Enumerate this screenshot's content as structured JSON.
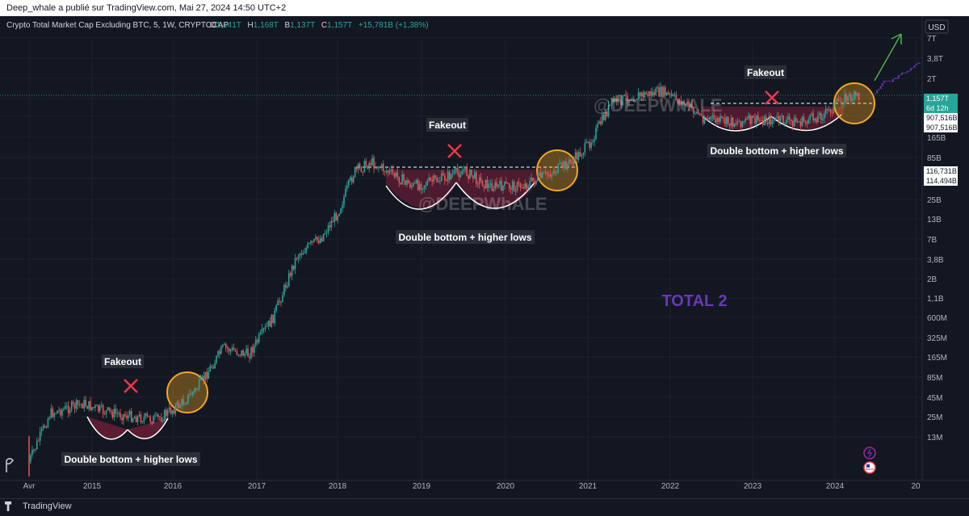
{
  "header": {
    "publish_text": "Deep_whale a publié sur TradingView.com, Mai 27, 2024 14:50 UTC+2"
  },
  "legend": {
    "symbol": "Crypto Total Market Cap Excluding BTC, 5, 1W, CRYPTOCAP",
    "o_label": "O",
    "o_value": "1,141T",
    "h_label": "H",
    "h_value": "1,168T",
    "b_label": "B",
    "b_value": "1,137T",
    "c_label": "C",
    "c_value": "1,157T",
    "change": "+15,781B (+1,38%)"
  },
  "currency": "USD",
  "price_tags": [
    {
      "text": "1,157T",
      "sub": "6d 12h",
      "y": 118,
      "color": "#26a69a"
    },
    {
      "text": "907,516B",
      "y": 142,
      "color": "#ffffff"
    },
    {
      "text": "907,516B",
      "y": 154,
      "color": "#ffffff"
    },
    {
      "text": "116,731B",
      "y": 208,
      "color": "#ffffff"
    },
    {
      "text": "114,494B",
      "y": 220,
      "color": "#ffffff"
    }
  ],
  "annotations": {
    "fakeout_1": "Fakeout",
    "fakeout_2": "Fakeout",
    "fakeout_3": "Fakeout",
    "pattern_1": "Double bottom + higher lows",
    "pattern_2": "Double bottom + higher lows",
    "pattern_3": "Double bottom + higher lows",
    "total": "TOTAL 2",
    "watermark_1": "@DEEPWhALE",
    "watermark_2": "@DEEPWhALE"
  },
  "footer": {
    "brand": "TradingView"
  },
  "colors": {
    "up": "#26a69a",
    "down": "#ef5350",
    "projection": "#673ab7",
    "circle": "#f5a623",
    "cross": "#f23645",
    "bowl": "#5c1d33",
    "total": "#673ab7",
    "arrow": "#4caf50"
  },
  "chart_data": {
    "type": "candlestick",
    "title": "Crypto Total Market Cap Excluding BTC, 5, 1W, CRYPTOCAP",
    "scale": "log",
    "currency": "USD",
    "x_ticks": [
      "Avr",
      "2015",
      "2016",
      "2017",
      "2018",
      "2019",
      "2020",
      "2021",
      "2022",
      "2023",
      "2024",
      "20"
    ],
    "y_ticks": [
      "7T",
      "3,8T",
      "2T",
      "1T",
      "325B",
      "165B",
      "85B",
      "45B",
      "25B",
      "13B",
      "7B",
      "3,8B",
      "2B",
      "1,1B",
      "600M",
      "325M",
      "165M",
      "85M",
      "45M",
      "25M",
      "13M"
    ],
    "last_close": "1,157T",
    "series": [
      {
        "name": "",
        "points": [
          [
            "Avr",
            12
          ],
          [
            "2014.5",
            55
          ],
          [
            "2014.9",
            75
          ],
          [
            "2015.1",
            60
          ],
          [
            "2015.5",
            50
          ],
          [
            "2015.8",
            45
          ],
          [
            "2016.1",
            75
          ],
          [
            "2016.3",
            125
          ],
          [
            "2016.6",
            430
          ],
          [
            "2016.9",
            350
          ],
          [
            "2017.2",
            1100
          ],
          [
            "2017.5",
            8000
          ],
          [
            "2017.8",
            14000
          ],
          [
            "2018.0",
            30000
          ],
          [
            "2018.2",
            110000
          ],
          [
            "2018.4",
            150000
          ],
          [
            "2018.6",
            110000
          ],
          [
            "2018.9",
            70000
          ],
          [
            "2019.2",
            85000
          ],
          [
            "2019.5",
            115000
          ],
          [
            "2019.8",
            70000
          ],
          [
            "2020.2",
            70000
          ],
          [
            "2020.5",
            100000
          ],
          [
            "2020.8",
            150000
          ],
          [
            "2021.0",
            250000
          ],
          [
            "2021.3",
            1000000
          ],
          [
            "2021.6",
            1200000
          ],
          [
            "2021.9",
            1350000
          ],
          [
            "2022.2",
            900000
          ],
          [
            "2022.4",
            600000
          ],
          [
            "2022.7",
            520000
          ],
          [
            "2023.0",
            550000
          ],
          [
            "2023.3",
            560000
          ],
          [
            "2023.6",
            520000
          ],
          [
            "2023.9",
            700000
          ],
          [
            "2024.1",
            1100000
          ],
          [
            "2024.3",
            1157000
          ]
        ]
      }
    ]
  }
}
